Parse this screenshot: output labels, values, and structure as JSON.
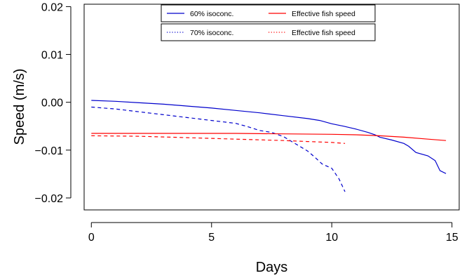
{
  "chart_data": {
    "type": "line",
    "xlabel": "Days",
    "ylabel": "Speed (m/s)",
    "xlim": [
      -0.3,
      15.3
    ],
    "ylim": [
      -0.0225,
      0.0205
    ],
    "xticks": [
      0,
      5,
      10,
      15
    ],
    "yticks": [
      -0.02,
      -0.01,
      0.0,
      0.01,
      0.02
    ],
    "xtick_labels": [
      "0",
      "5",
      "10",
      "15"
    ],
    "ytick_labels": [
      "−0.02",
      "−0.01",
      "0.00",
      "0.01",
      "0.02"
    ],
    "grid": false,
    "series": [
      {
        "name": "60% isoconc.",
        "color": "#0000CC",
        "dash": "solid",
        "x": [
          0,
          1,
          2,
          3,
          4,
          5,
          6,
          7,
          8,
          9,
          9.5,
          10,
          10.5,
          11,
          11.5,
          11.8,
          12,
          12.5,
          13,
          13.2,
          13.5,
          14,
          14.3,
          14.5,
          14.75
        ],
        "y": [
          0.0004,
          0.0002,
          -0.0001,
          -0.0004,
          -0.0008,
          -0.0012,
          -0.0017,
          -0.0022,
          -0.0028,
          -0.0034,
          -0.0038,
          -0.0045,
          -0.005,
          -0.0056,
          -0.0063,
          -0.0068,
          -0.0073,
          -0.0079,
          -0.0086,
          -0.0092,
          -0.0105,
          -0.0112,
          -0.0122,
          -0.0143,
          -0.0149
        ]
      },
      {
        "name": "70% isoconc.",
        "color": "#0000CC",
        "dash": "dashed",
        "x": [
          0,
          1,
          2,
          3,
          4,
          5,
          6,
          6.5,
          7,
          7.5,
          8,
          8.5,
          9,
          9.3,
          9.6,
          10,
          10.3,
          10.55
        ],
        "y": [
          -0.001,
          -0.0014,
          -0.002,
          -0.0026,
          -0.0032,
          -0.0038,
          -0.0044,
          -0.0051,
          -0.0059,
          -0.0063,
          -0.0072,
          -0.0087,
          -0.0102,
          -0.0115,
          -0.0129,
          -0.0138,
          -0.016,
          -0.0187
        ]
      },
      {
        "name": "Effective fish speed",
        "color": "#FF0000",
        "dash": "solid",
        "x": [
          0,
          2,
          4,
          6,
          8,
          10,
          11,
          12,
          13,
          14,
          14.75
        ],
        "y": [
          -0.0065,
          -0.0065,
          -0.0065,
          -0.0065,
          -0.0066,
          -0.0067,
          -0.0068,
          -0.007,
          -0.0073,
          -0.0077,
          -0.008
        ]
      },
      {
        "name": "Effective fish speed",
        "color": "#FF0000",
        "dash": "dashed",
        "x": [
          0,
          2,
          4,
          6,
          8,
          9,
          10,
          10.55
        ],
        "y": [
          -0.007,
          -0.0071,
          -0.0074,
          -0.0077,
          -0.008,
          -0.0082,
          -0.0084,
          -0.0086
        ]
      }
    ],
    "legend": {
      "placement": "top-center",
      "boxes": [
        {
          "entries": [
            {
              "label": "60% isoconc.",
              "color": "#0000CC",
              "dash": "solid"
            },
            {
              "label": "Effective fish speed",
              "color": "#FF0000",
              "dash": "solid"
            }
          ]
        },
        {
          "entries": [
            {
              "label": "70% isoconc.",
              "color": "#0000CC",
              "dash": "dotted"
            },
            {
              "label": "Effective fish speed",
              "color": "#FF0000",
              "dash": "dotted"
            }
          ]
        }
      ]
    }
  }
}
